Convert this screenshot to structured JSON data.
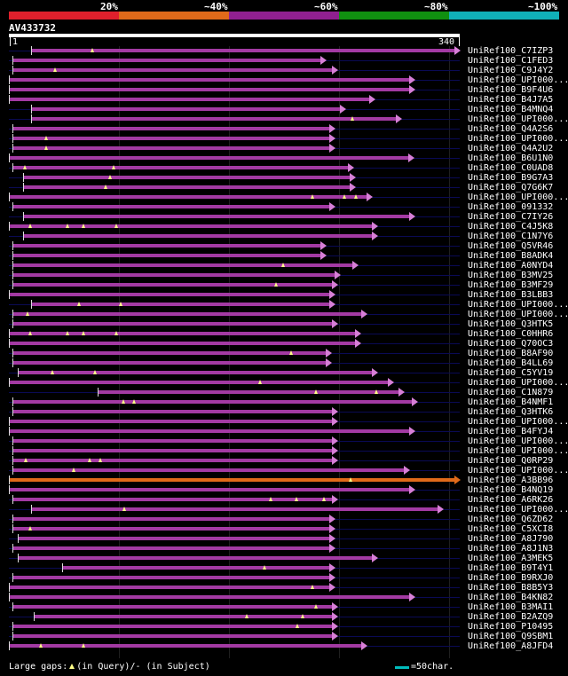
{
  "legend": {
    "labels": [
      "20%",
      "~40%",
      "~60%",
      "~80%",
      "~100%"
    ],
    "colors": [
      "#e0202c",
      "#e06a1a",
      "#902090",
      "#109010",
      "#10b0b8"
    ]
  },
  "query": {
    "id": "AV433732",
    "start": "1",
    "end": "340",
    "length": 340
  },
  "colors": {
    "bar": "#a33aa3",
    "head": "#d77fd7",
    "highlight": "#e06a1a",
    "marker": "#ffff88",
    "scale": "#00bbbb"
  },
  "hits": [
    {
      "label": "UniRef100_C7IZP3",
      "s": 18,
      "e": 340,
      "gaps": [],
      "marks": [
        64
      ]
    },
    {
      "label": "UniRef100_C1FED3",
      "s": 4,
      "e": 239,
      "gaps": [],
      "marks": []
    },
    {
      "label": "UniRef100_C9J4Y2",
      "s": 4,
      "e": 248,
      "gaps": [],
      "marks": [
        36
      ]
    },
    {
      "label": "UniRef100_UPI000...",
      "s": 1,
      "e": 306,
      "gaps": [],
      "marks": []
    },
    {
      "label": "UniRef100_B9F4U6",
      "s": 1,
      "e": 306,
      "gaps": [],
      "marks": []
    },
    {
      "label": "UniRef100_B4J7A5",
      "s": 1,
      "e": 276,
      "gaps": [],
      "marks": []
    },
    {
      "label": "UniRef100_B4MNQ4",
      "s": 18,
      "e": 254,
      "gaps": [],
      "marks": []
    },
    {
      "label": "UniRef100_UPI000...",
      "s": 18,
      "e": 296,
      "gaps": [],
      "marks": [
        259
      ]
    },
    {
      "label": "UniRef100_Q4A2S6",
      "s": 4,
      "e": 246,
      "gaps": [],
      "marks": []
    },
    {
      "label": "UniRef100_UPI000...",
      "s": 4,
      "e": 246,
      "gaps": [],
      "marks": [
        29
      ]
    },
    {
      "label": "UniRef100_Q4A2U2",
      "s": 4,
      "e": 246,
      "gaps": [],
      "marks": [
        29
      ]
    },
    {
      "label": "UniRef100_B6U1N0",
      "s": 1,
      "e": 305,
      "gaps": [],
      "marks": []
    },
    {
      "label": "UniRef100_C0UAD8",
      "s": 4,
      "e": 260,
      "gaps": [],
      "marks": [
        13,
        80
      ]
    },
    {
      "label": "UniRef100_B9G7A3",
      "s": 12,
      "e": 261,
      "gaps": [],
      "marks": [
        77
      ]
    },
    {
      "label": "UniRef100_Q7G6K7",
      "s": 12,
      "e": 261,
      "gaps": [],
      "marks": [
        74
      ]
    },
    {
      "label": "UniRef100_UPI000...",
      "s": 1,
      "e": 274,
      "gaps": [],
      "marks": [
        229,
        253,
        262
      ]
    },
    {
      "label": "UniRef100_091332",
      "s": 4,
      "e": 246,
      "gaps": [],
      "marks": []
    },
    {
      "label": "UniRef100_C7IY26",
      "s": 12,
      "e": 306,
      "gaps": [],
      "marks": []
    },
    {
      "label": "UniRef100_C4J5K8",
      "s": 1,
      "e": 278,
      "gaps": [],
      "marks": [
        17,
        45,
        57,
        82
      ]
    },
    {
      "label": "UniRef100_C1N7Y6",
      "s": 12,
      "e": 278,
      "gaps": [],
      "marks": []
    },
    {
      "label": "UniRef100_Q5VR46",
      "s": 4,
      "e": 239,
      "gaps": [],
      "marks": []
    },
    {
      "label": "UniRef100_B8ADK4",
      "s": 4,
      "e": 239,
      "gaps": [],
      "marks": []
    },
    {
      "label": "UniRef100_A0NYD4",
      "s": 4,
      "e": 263,
      "gaps": [],
      "marks": [
        207
      ]
    },
    {
      "label": "UniRef100_B3MV25",
      "s": 4,
      "e": 250,
      "gaps": [],
      "marks": []
    },
    {
      "label": "UniRef100_B3MF29",
      "s": 4,
      "e": 248,
      "gaps": [],
      "marks": [
        202
      ]
    },
    {
      "label": "UniRef100_B3LBB3",
      "s": 1,
      "e": 246,
      "gaps": [],
      "marks": []
    },
    {
      "label": "UniRef100_UPI000...",
      "s": 18,
      "e": 246,
      "gaps": [],
      "marks": [
        54,
        85
      ]
    },
    {
      "label": "UniRef100_UPI000...",
      "s": 4,
      "e": 270,
      "gaps": [],
      "marks": [
        15
      ]
    },
    {
      "label": "UniRef100_Q3HTK5",
      "s": 4,
      "e": 248,
      "gaps": [],
      "marks": []
    },
    {
      "label": "UniRef100_C0HHR6",
      "s": 1,
      "e": 265,
      "gaps": [],
      "marks": [
        17,
        45,
        57,
        82
      ]
    },
    {
      "label": "UniRef100_Q70OC3",
      "s": 1,
      "e": 265,
      "gaps": [],
      "marks": []
    },
    {
      "label": "UniRef100_B8AF90",
      "s": 4,
      "e": 243,
      "gaps": [],
      "marks": [
        213
      ]
    },
    {
      "label": "UniRef100_B4LL69",
      "s": 4,
      "e": 243,
      "gaps": [],
      "marks": []
    },
    {
      "label": "UniRef100_C5YV19",
      "s": 8,
      "e": 278,
      "gaps": [],
      "marks": [
        34,
        66
      ]
    },
    {
      "label": "UniRef100_UPI000...",
      "s": 1,
      "e": 290,
      "gaps": [],
      "marks": [
        190
      ]
    },
    {
      "label": "UniRef100_C1N879",
      "s": 68,
      "e": 298,
      "gaps": [],
      "marks": [
        232,
        277
      ]
    },
    {
      "label": "UniRef100_B4NMF1",
      "s": 4,
      "e": 308,
      "gaps": [],
      "marks": [
        87,
        95
      ]
    },
    {
      "label": "UniRef100_Q3HTK6",
      "s": 4,
      "e": 248,
      "gaps": [],
      "marks": []
    },
    {
      "label": "UniRef100_UPI000...",
      "s": 1,
      "e": 248,
      "gaps": [],
      "marks": []
    },
    {
      "label": "UniRef100_B4FYJ4",
      "s": 1,
      "e": 306,
      "gaps": [],
      "marks": []
    },
    {
      "label": "UniRef100_UPI000...",
      "s": 4,
      "e": 248,
      "gaps": [],
      "marks": []
    },
    {
      "label": "UniRef100_UPI000...",
      "s": 4,
      "e": 248,
      "gaps": [],
      "marks": []
    },
    {
      "label": "UniRef100_Q0RP29",
      "s": 4,
      "e": 248,
      "gaps": [],
      "marks": [
        14,
        62,
        70
      ]
    },
    {
      "label": "UniRef100_UPI000...",
      "s": 4,
      "e": 302,
      "gaps": [],
      "marks": [
        50
      ]
    },
    {
      "label": "UniRef100_A3BB96",
      "s": 1,
      "e": 340,
      "gaps": [],
      "marks": [
        258
      ],
      "highlight": true
    },
    {
      "label": "UniRef100_B4NQ19",
      "s": 1,
      "e": 306,
      "gaps": [],
      "marks": []
    },
    {
      "label": "UniRef100_A6RK26",
      "s": 4,
      "e": 248,
      "gaps": [],
      "marks": [
        198,
        217,
        238
      ]
    },
    {
      "label": "UniRef100_UPI000...",
      "s": 18,
      "e": 327,
      "gaps": [],
      "marks": [
        88
      ]
    },
    {
      "label": "UniRef100_Q6ZD62",
      "s": 4,
      "e": 246,
      "gaps": [],
      "marks": []
    },
    {
      "label": "UniRef100_C5XCI8",
      "s": 4,
      "e": 246,
      "gaps": [],
      "marks": [
        17
      ]
    },
    {
      "label": "UniRef100_A8J790",
      "s": 8,
      "e": 246,
      "gaps": [],
      "marks": []
    },
    {
      "label": "UniRef100_A8J1N3",
      "s": 4,
      "e": 246,
      "gaps": [],
      "marks": []
    },
    {
      "label": "UniRef100_A3MEK5",
      "s": 8,
      "e": 278,
      "gaps": [],
      "marks": []
    },
    {
      "label": "UniRef100_B9T4Y1",
      "s": 41,
      "e": 246,
      "gaps": [],
      "marks": [
        193
      ]
    },
    {
      "label": "UniRef100_B9RXJ0",
      "s": 4,
      "e": 246,
      "gaps": [],
      "marks": []
    },
    {
      "label": "UniRef100_B8B5Y3",
      "s": 1,
      "e": 246,
      "gaps": [],
      "marks": [
        229
      ]
    },
    {
      "label": "UniRef100_B4KN82",
      "s": 1,
      "e": 306,
      "gaps": [],
      "marks": []
    },
    {
      "label": "UniRef100_B3MAI1",
      "s": 4,
      "e": 248,
      "gaps": [],
      "marks": [
        232
      ]
    },
    {
      "label": "UniRef100_B2AZQ9",
      "s": 20,
      "e": 248,
      "gaps": [],
      "marks": [
        180,
        222
      ]
    },
    {
      "label": "UniRef100_P10495",
      "s": 4,
      "e": 248,
      "gaps": [],
      "marks": [
        218
      ]
    },
    {
      "label": "UniRef100_Q9SBM1",
      "s": 4,
      "e": 248,
      "gaps": [],
      "marks": []
    },
    {
      "label": "UniRef100_A8JFD4",
      "s": 1,
      "e": 270,
      "gaps": [],
      "marks": [
        25,
        57
      ]
    }
  ],
  "footer": {
    "prefix": "Large gaps:",
    "query_text": "(in Query)/",
    "subject_text": "- (in Subject)",
    "scale_text": "=50char."
  }
}
